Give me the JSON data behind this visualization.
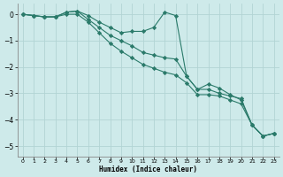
{
  "xlabel": "Humidex (Indice chaleur)",
  "xlim_left": -0.5,
  "xlim_right": 23.5,
  "ylim": [
    -5.4,
    0.4
  ],
  "yticks": [
    0,
    -1,
    -2,
    -3,
    -4,
    -5
  ],
  "xticks": [
    0,
    1,
    2,
    3,
    4,
    5,
    6,
    7,
    8,
    9,
    10,
    11,
    12,
    13,
    14,
    15,
    16,
    17,
    18,
    19,
    20,
    21,
    22,
    23
  ],
  "bg_color": "#ceeaea",
  "grid_color": "#b2d4d4",
  "line_color": "#2a7a6a",
  "line1_y": [
    0.0,
    -0.05,
    -0.1,
    -0.1,
    0.08,
    0.12,
    -0.05,
    -0.3,
    -0.5,
    -0.7,
    -0.65,
    -0.65,
    -0.5,
    0.08,
    -0.05,
    -2.35,
    -2.85,
    -2.65,
    -2.8,
    -3.05,
    -3.25,
    -4.2,
    -4.62,
    -4.52
  ],
  "line2_y": [
    0.0,
    -0.05,
    -0.1,
    -0.1,
    0.08,
    0.12,
    -0.2,
    -0.5,
    -0.8,
    -1.0,
    -1.2,
    -1.45,
    -1.55,
    -1.65,
    -1.7,
    -2.35,
    -2.85,
    -2.85,
    -3.0,
    -3.1,
    -3.2,
    -4.2,
    -4.62,
    -4.52
  ],
  "line3_y": [
    0.0,
    -0.05,
    -0.1,
    -0.1,
    0.0,
    0.0,
    -0.3,
    -0.7,
    -1.1,
    -1.4,
    -1.65,
    -1.9,
    -2.05,
    -2.2,
    -2.3,
    -2.6,
    -3.05,
    -3.05,
    -3.1,
    -3.25,
    -3.4,
    -4.2,
    -4.62,
    -4.52
  ]
}
